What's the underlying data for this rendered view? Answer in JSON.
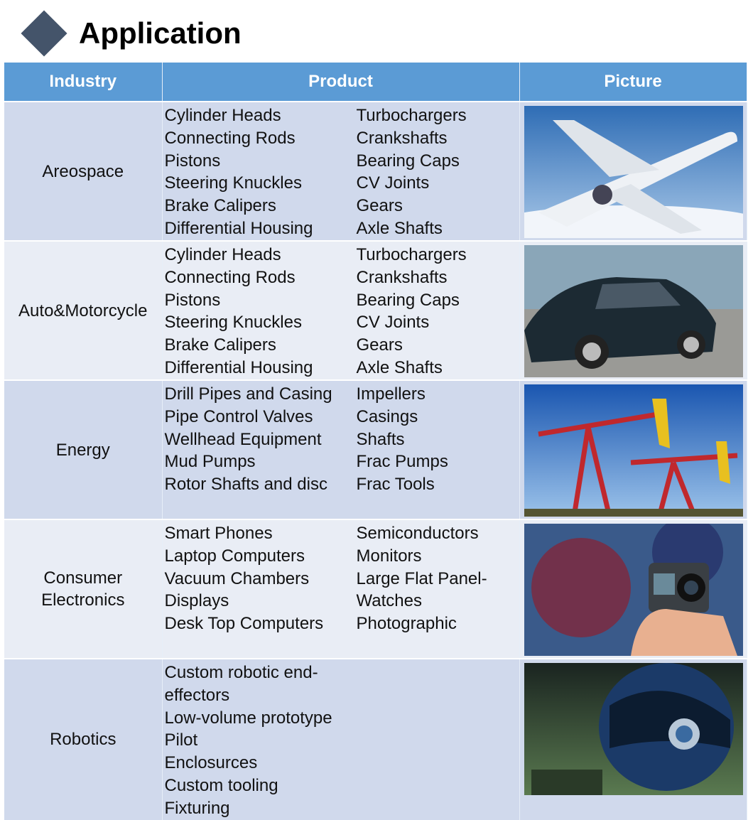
{
  "title": "Application",
  "headers": {
    "industry": "Industry",
    "product": "Product",
    "picture": "Picture"
  },
  "rows": [
    {
      "industry": "Areospace",
      "left": [
        "Cylinder Heads",
        "Connecting Rods",
        "Pistons",
        "Steering Knuckles",
        "Brake Calipers",
        "Differential Housing"
      ],
      "right": [
        "Turbochargers",
        "Crankshafts",
        "Bearing Caps",
        "CV Joints",
        "Gears",
        "Axle Shafts"
      ],
      "picture": "airplane-photo"
    },
    {
      "industry": "Auto&Motorcycle",
      "left": [
        "Cylinder Heads",
        "Connecting Rods",
        "Pistons",
        "Steering Knuckles",
        "Brake Calipers",
        "Differential Housing"
      ],
      "right": [
        "Turbochargers",
        "Crankshafts",
        "Bearing Caps",
        "CV Joints",
        "Gears",
        "Axle Shafts"
      ],
      "picture": "car-photo"
    },
    {
      "industry": "Energy",
      "left": [
        "Drill Pipes and Casing",
        "Pipe Control Valves",
        "Wellhead Equipment",
        "Mud Pumps",
        "Rotor Shafts and disc"
      ],
      "right": [
        "Impellers",
        "Casings",
        "Shafts",
        "Frac Pumps",
        "Frac Tools"
      ],
      "picture": "oil-pump-photo"
    },
    {
      "industry": "Consumer Electronics",
      "left": [
        "Smart Phones",
        "Laptop Computers",
        "Vacuum Chambers",
        "Displays",
        "Desk Top Computers"
      ],
      "right": [
        "Semiconductors",
        "Monitors",
        "Large Flat Panel-",
        "Watches",
        "Photographic"
      ],
      "picture": "action-camera-photo"
    },
    {
      "industry": "Robotics",
      "left": [
        "Custom robotic end-effectors",
        "Low-volume prototype",
        "Pilot",
        "Enclosurces",
        "Custom tooling",
        "Fixturing"
      ],
      "right": [],
      "picture": "robot-helmet-photo"
    }
  ],
  "colors": {
    "header": "#5b9bd5",
    "row_dark": "#d0d9ec",
    "row_light": "#e9edf5",
    "diamond": "#44546a"
  }
}
